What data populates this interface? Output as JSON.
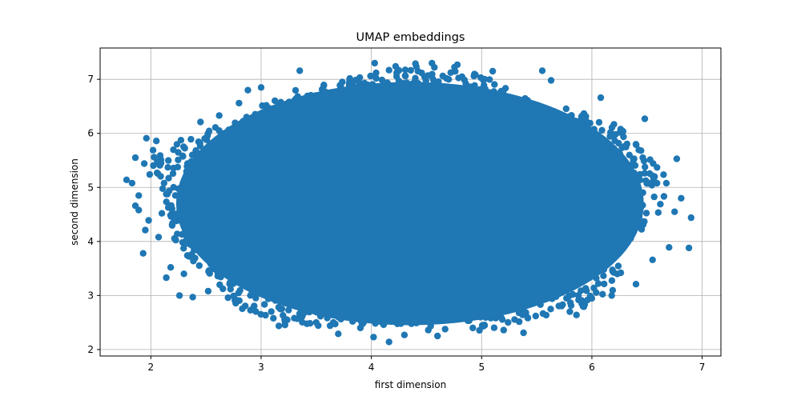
{
  "chart_data": {
    "type": "scatter",
    "title": "UMAP embeddings",
    "xlabel": "first dimension",
    "ylabel": "second dimension",
    "xlim": [
      1.54,
      7.17
    ],
    "ylim": [
      1.88,
      7.58
    ],
    "xticks": [
      2,
      3,
      4,
      5,
      6,
      7
    ],
    "yticks": [
      2,
      3,
      4,
      5,
      6,
      7
    ],
    "xtick_labels": [
      "2",
      "3",
      "4",
      "5",
      "6",
      "7"
    ],
    "ytick_labels": [
      "2",
      "3",
      "4",
      "5",
      "6",
      "7"
    ],
    "grid": true,
    "legend": "none",
    "color": "#1f77b4",
    "series": [
      {
        "points": [
          [
            1.78,
            5.14
          ],
          [
            1.83,
            5.08
          ],
          [
            1.86,
            5.55
          ],
          [
            1.86,
            4.66
          ],
          [
            1.89,
            4.85
          ],
          [
            1.89,
            4.58
          ],
          [
            1.93,
            3.78
          ],
          [
            1.94,
            5.44
          ],
          [
            1.95,
            4.21
          ],
          [
            1.96,
            5.91
          ],
          [
            1.98,
            4.39
          ],
          [
            1.99,
            5.24
          ],
          [
            2.02,
            5.69
          ],
          [
            2.05,
            5.86
          ],
          [
            2.07,
            4.08
          ],
          [
            2.1,
            4.52
          ],
          [
            2.12,
            5.08
          ],
          [
            2.14,
            3.33
          ],
          [
            2.18,
            3.52
          ],
          [
            2.26,
            3.0
          ],
          [
            2.3,
            3.4
          ],
          [
            2.38,
            2.97
          ],
          [
            2.45,
            6.21
          ],
          [
            2.52,
            3.08
          ],
          [
            2.62,
            6.33
          ],
          [
            2.7,
            2.96
          ],
          [
            2.8,
            6.56
          ],
          [
            2.88,
            6.8
          ],
          [
            3.0,
            6.85
          ],
          [
            3.35,
            7.16
          ],
          [
            3.5,
            2.5
          ],
          [
            3.7,
            2.29
          ],
          [
            3.9,
            2.4
          ],
          [
            4.02,
            2.23
          ],
          [
            4.03,
            7.3
          ],
          [
            4.16,
            2.14
          ],
          [
            4.22,
            7.24
          ],
          [
            4.3,
            2.27
          ],
          [
            4.4,
            7.29
          ],
          [
            4.55,
            7.3
          ],
          [
            4.6,
            2.25
          ],
          [
            4.78,
            7.27
          ],
          [
            4.92,
            2.4
          ],
          [
            5.1,
            7.15
          ],
          [
            5.2,
            2.36
          ],
          [
            5.38,
            2.31
          ],
          [
            5.55,
            7.16
          ],
          [
            5.63,
            6.98
          ],
          [
            5.8,
            2.7
          ],
          [
            5.86,
            2.64
          ],
          [
            6.08,
            6.66
          ],
          [
            6.18,
            3.0
          ],
          [
            6.4,
            3.21
          ],
          [
            6.48,
            6.27
          ],
          [
            6.55,
            3.66
          ],
          [
            6.7,
            3.89
          ],
          [
            6.75,
            4.55
          ],
          [
            6.77,
            5.53
          ],
          [
            6.81,
            4.8
          ],
          [
            6.88,
            3.88
          ],
          [
            6.9,
            4.44
          ]
        ]
      }
    ]
  }
}
